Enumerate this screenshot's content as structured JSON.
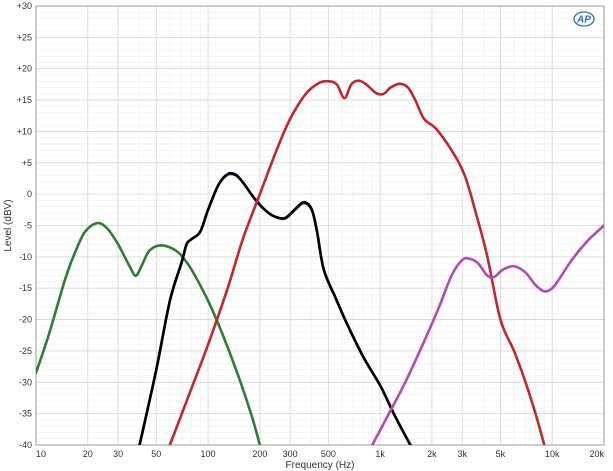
{
  "chart_data": {
    "type": "line",
    "xlabel": "Frequency (Hz)",
    "ylabel": "Level (dBV)",
    "x_scale": "log",
    "xlim": [
      10,
      20000
    ],
    "ylim": [
      -40,
      30
    ],
    "grid": true,
    "x_ticks": [
      {
        "value": 10,
        "label": "10"
      },
      {
        "value": 20,
        "label": "20"
      },
      {
        "value": 30,
        "label": "30"
      },
      {
        "value": 50,
        "label": "50"
      },
      {
        "value": 100,
        "label": "100"
      },
      {
        "value": 200,
        "label": "200"
      },
      {
        "value": 300,
        "label": "300"
      },
      {
        "value": 500,
        "label": "500"
      },
      {
        "value": 1000,
        "label": "1k"
      },
      {
        "value": 2000,
        "label": "2k"
      },
      {
        "value": 3000,
        "label": "3k"
      },
      {
        "value": 5000,
        "label": "5k"
      },
      {
        "value": 10000,
        "label": "10k"
      },
      {
        "value": 20000,
        "label": "20k"
      }
    ],
    "y_ticks": [
      {
        "value": 30,
        "label": "+30"
      },
      {
        "value": 25,
        "label": "+25"
      },
      {
        "value": 20,
        "label": "+20"
      },
      {
        "value": 15,
        "label": "+15"
      },
      {
        "value": 10,
        "label": "+10"
      },
      {
        "value": 5,
        "label": "+5"
      },
      {
        "value": 0,
        "label": "0"
      },
      {
        "value": -5,
        "label": "-5"
      },
      {
        "value": -10,
        "label": "-10"
      },
      {
        "value": -15,
        "label": "-15"
      },
      {
        "value": -20,
        "label": "-20"
      },
      {
        "value": -25,
        "label": "-25"
      },
      {
        "value": -30,
        "label": "-30"
      },
      {
        "value": -35,
        "label": "-35"
      },
      {
        "value": -40,
        "label": "-40"
      }
    ],
    "series": [
      {
        "color": "#2e7d32",
        "points": [
          [
            10,
            -28.5
          ],
          [
            12,
            -22
          ],
          [
            15,
            -13
          ],
          [
            18,
            -7.5
          ],
          [
            20,
            -5.5
          ],
          [
            23,
            -4.6
          ],
          [
            26,
            -5.5
          ],
          [
            30,
            -8
          ],
          [
            35,
            -11.5
          ],
          [
            38,
            -13
          ],
          [
            41,
            -11.5
          ],
          [
            45,
            -9.2
          ],
          [
            50,
            -8.3
          ],
          [
            55,
            -8.2
          ],
          [
            60,
            -8.5
          ],
          [
            65,
            -9
          ],
          [
            70,
            -9.8
          ],
          [
            80,
            -12
          ],
          [
            100,
            -17
          ],
          [
            120,
            -22
          ],
          [
            150,
            -29
          ],
          [
            180,
            -35.5
          ],
          [
            200,
            -40
          ]
        ]
      },
      {
        "color": "#3b3bb5",
        "points": [
          [
            40,
            -40
          ],
          [
            50,
            -28
          ],
          [
            60,
            -17
          ],
          [
            70,
            -11
          ],
          [
            75,
            -8
          ],
          [
            80,
            -7.2
          ],
          [
            90,
            -6
          ],
          [
            100,
            -2.5
          ],
          [
            115,
            1.5
          ],
          [
            130,
            3.1
          ],
          [
            145,
            3
          ],
          [
            160,
            1.8
          ],
          [
            185,
            -0.6
          ],
          [
            210,
            -2.3
          ],
          [
            240,
            -3.5
          ],
          [
            280,
            -3.9
          ],
          [
            320,
            -2.5
          ],
          [
            360,
            -1.4
          ],
          [
            400,
            -2.5
          ],
          [
            430,
            -6
          ],
          [
            470,
            -12
          ],
          [
            550,
            -16.5
          ],
          [
            650,
            -21
          ],
          [
            800,
            -26
          ],
          [
            1000,
            -30.5
          ],
          [
            1200,
            -35
          ],
          [
            1400,
            -38.5
          ],
          [
            1500,
            -40
          ]
        ]
      },
      {
        "color": "#000000",
        "points": [
          [
            40,
            -40
          ],
          [
            50,
            -28
          ],
          [
            60,
            -17
          ],
          [
            70,
            -11
          ],
          [
            75,
            -8
          ],
          [
            80,
            -7.2
          ],
          [
            90,
            -6
          ],
          [
            100,
            -2.5
          ],
          [
            115,
            1.5
          ],
          [
            130,
            3.2
          ],
          [
            145,
            3.1
          ],
          [
            160,
            1.8
          ],
          [
            185,
            -0.6
          ],
          [
            210,
            -2.3
          ],
          [
            240,
            -3.5
          ],
          [
            280,
            -3.8
          ],
          [
            320,
            -2.4
          ],
          [
            360,
            -1.3
          ],
          [
            400,
            -2.4
          ],
          [
            430,
            -6
          ],
          [
            470,
            -12
          ],
          [
            550,
            -16.5
          ],
          [
            650,
            -21
          ],
          [
            800,
            -26
          ],
          [
            1000,
            -30.5
          ],
          [
            1200,
            -35
          ],
          [
            1400,
            -38.5
          ],
          [
            1500,
            -40
          ]
        ]
      },
      {
        "color": "#c0282d",
        "points": [
          [
            60,
            -40
          ],
          [
            80,
            -31
          ],
          [
            100,
            -24
          ],
          [
            130,
            -15
          ],
          [
            160,
            -7
          ],
          [
            200,
            0
          ],
          [
            250,
            7
          ],
          [
            300,
            12
          ],
          [
            370,
            16
          ],
          [
            440,
            17.7
          ],
          [
            500,
            18
          ],
          [
            560,
            17.5
          ],
          [
            620,
            15.3
          ],
          [
            680,
            17.5
          ],
          [
            750,
            18.1
          ],
          [
            830,
            17.5
          ],
          [
            950,
            16.1
          ],
          [
            1050,
            16
          ],
          [
            1150,
            17
          ],
          [
            1300,
            17.6
          ],
          [
            1450,
            17
          ],
          [
            1600,
            15
          ],
          [
            1800,
            12
          ],
          [
            2100,
            10.5
          ],
          [
            2600,
            7
          ],
          [
            3100,
            3
          ],
          [
            3600,
            -3
          ],
          [
            4200,
            -10
          ],
          [
            5000,
            -20
          ],
          [
            6000,
            -25
          ],
          [
            7000,
            -30
          ],
          [
            8000,
            -35
          ],
          [
            9000,
            -40
          ]
        ]
      },
      {
        "color": "#b04ab8",
        "points": [
          [
            900,
            -40
          ],
          [
            1100,
            -35.5
          ],
          [
            1400,
            -30
          ],
          [
            1800,
            -23.5
          ],
          [
            2200,
            -18
          ],
          [
            2600,
            -13
          ],
          [
            3000,
            -10.5
          ],
          [
            3300,
            -10.3
          ],
          [
            3700,
            -11
          ],
          [
            4200,
            -13
          ],
          [
            4600,
            -13.2
          ],
          [
            5200,
            -12
          ],
          [
            6000,
            -11.5
          ],
          [
            7000,
            -12.5
          ],
          [
            8000,
            -14.5
          ],
          [
            9000,
            -15.5
          ],
          [
            10000,
            -15
          ],
          [
            11000,
            -13.5
          ],
          [
            13000,
            -10.5
          ],
          [
            16000,
            -7.5
          ],
          [
            20000,
            -5
          ]
        ]
      }
    ]
  },
  "logo": {
    "text": "AP"
  }
}
